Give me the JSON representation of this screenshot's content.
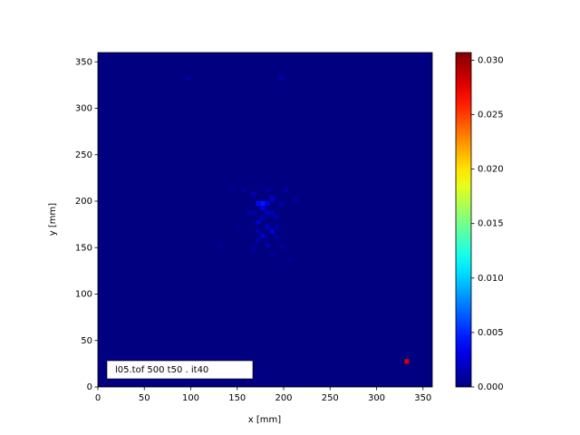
{
  "chart_data": {
    "type": "heatmap",
    "colormap": "jet",
    "xlabel": "x [mm]",
    "ylabel": "y [mm]",
    "annotation": "l05.tof 500 t50 .  it40",
    "xlim": [
      0,
      360
    ],
    "ylim": [
      0,
      360
    ],
    "xticks": [
      0,
      50,
      100,
      150,
      200,
      250,
      300,
      350
    ],
    "yticks": [
      0,
      50,
      100,
      150,
      200,
      250,
      300,
      350
    ],
    "clim": [
      0,
      0.0307
    ],
    "cticks": [
      {
        "value": 0,
        "label": "0.000"
      },
      {
        "value": 0.005,
        "label": "0.005"
      },
      {
        "value": 0.01,
        "label": "0.010"
      },
      {
        "value": 0.015,
        "label": "0.015"
      },
      {
        "value": 0.02,
        "label": "0.020"
      },
      {
        "value": 0.025,
        "label": "0.025"
      },
      {
        "value": 0.03,
        "label": "0.030"
      }
    ],
    "x": [
      177.5,
      172.5,
      182.5,
      187.5,
      177.5,
      187.5,
      172.5,
      182.5,
      187.5,
      177.5,
      192.5,
      167.5,
      197.5,
      182.5,
      172.5,
      192.5,
      162.5,
      202.5,
      212.5,
      157.5,
      167.5,
      187.5,
      197.5,
      177.5,
      182.5,
      172.5,
      192.5,
      182.5,
      167.5,
      142.5,
      132.5,
      207.5,
      152.5,
      97.5,
      197.5,
      332.5
    ],
    "y": [
      197.5,
      197.5,
      197.5,
      202.5,
      192.5,
      187.5,
      177.5,
      172.5,
      167.5,
      162.5,
      182.5,
      207.5,
      197.5,
      152.5,
      157.5,
      162.5,
      187.5,
      212.5,
      202.5,
      212.5,
      147.5,
      142.5,
      152.5,
      182.5,
      212.5,
      167.5,
      172.5,
      187.5,
      187.5,
      212.5,
      152.5,
      137.5,
      172.5,
      332.5,
      332.5,
      27.5
    ],
    "values": [
      0.0045,
      0.004,
      0.003,
      0.0025,
      0.003,
      0.002,
      0.0025,
      0.002,
      0.003,
      0.0025,
      0.0015,
      0.0015,
      0.0015,
      0.0015,
      0.0012,
      0.0012,
      0.001,
      0.001,
      0.001,
      0.0008,
      0.001,
      0.0008,
      0.0008,
      0.0015,
      0.0012,
      0.0015,
      0.0012,
      0.0018,
      0.0012,
      0.0006,
      0.0006,
      0.0006,
      0.0006,
      0.001,
      0.0015,
      0.028
    ]
  }
}
